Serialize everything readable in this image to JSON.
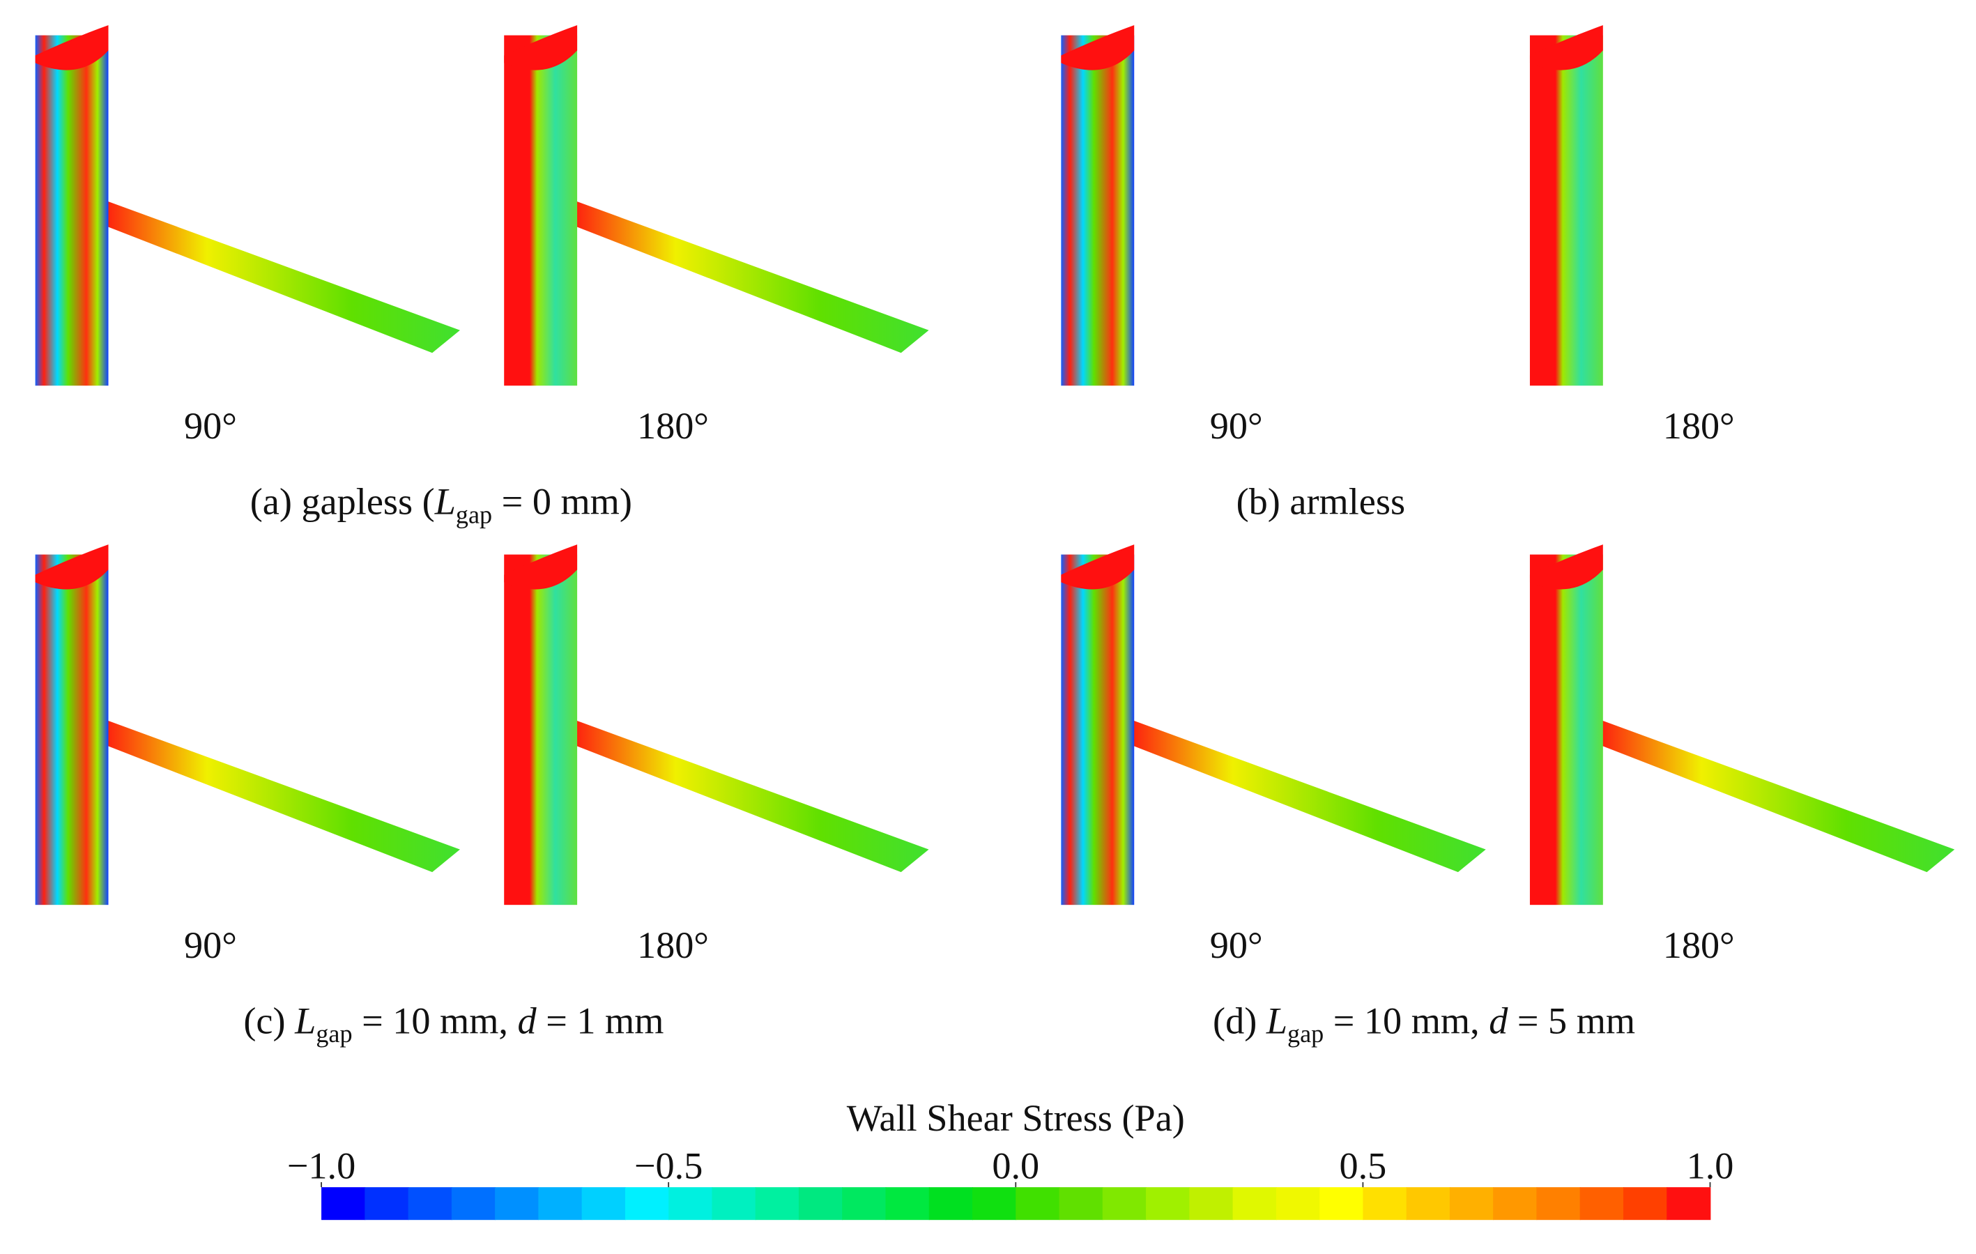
{
  "panels": [
    {
      "caption": [
        {
          "text": "(a) gapless ("
        },
        {
          "text": "L",
          "style": "italic"
        },
        {
          "text": "gap",
          "style": "sub"
        },
        {
          "text": " = 0 mm)"
        }
      ],
      "arm": true,
      "views": [
        {
          "label": "90°"
        },
        {
          "label": "180°"
        }
      ]
    },
    {
      "caption": [
        {
          "text": "(b) armless"
        }
      ],
      "arm": false,
      "views": [
        {
          "label": "90°"
        },
        {
          "label": "180°"
        }
      ]
    },
    {
      "caption": [
        {
          "text": "(c) "
        },
        {
          "text": "L",
          "style": "italic"
        },
        {
          "text": "gap",
          "style": "sub"
        },
        {
          "text": " = 10 mm, "
        },
        {
          "text": "d",
          "style": "italic"
        },
        {
          "text": " = 1 mm"
        }
      ],
      "arm": true,
      "views": [
        {
          "label": "90°"
        },
        {
          "label": "180°"
        }
      ]
    },
    {
      "caption": [
        {
          "text": "(d) "
        },
        {
          "text": "L",
          "style": "italic"
        },
        {
          "text": "gap",
          "style": "sub"
        },
        {
          "text": " = 10 mm, "
        },
        {
          "text": "d",
          "style": "italic"
        },
        {
          "text": " = 5 mm"
        }
      ],
      "arm": true,
      "views": [
        {
          "label": "90°"
        },
        {
          "label": "180°"
        }
      ]
    }
  ],
  "colorbar": {
    "title": "Wall Shear Stress (Pa)",
    "lim": [
      -1,
      1
    ],
    "ticks": [
      {
        "value": -1,
        "label": "−1.0"
      },
      {
        "value": -0.5,
        "label": "−0.5"
      },
      {
        "value": 0,
        "label": "0.0"
      },
      {
        "value": 0.5,
        "label": "0.5"
      },
      {
        "value": 1,
        "label": "1.0"
      }
    ],
    "colors": [
      "#0000ff",
      "#0030ff",
      "#0050ff",
      "#0070ff",
      "#0090ff",
      "#00b0ff",
      "#00d0ff",
      "#00f0ff",
      "#00f0e0",
      "#00f0c0",
      "#00f0a0",
      "#00e880",
      "#00e860",
      "#00e840",
      "#00e020",
      "#10e010",
      "#40e000",
      "#60e000",
      "#80e800",
      "#a0f000",
      "#c0f000",
      "#e0f800",
      "#f0f800",
      "#ffff00",
      "#ffe000",
      "#ffc800",
      "#ffb000",
      "#ff9800",
      "#ff8000",
      "#ff6000",
      "#ff4000",
      "#ff1010"
    ]
  }
}
